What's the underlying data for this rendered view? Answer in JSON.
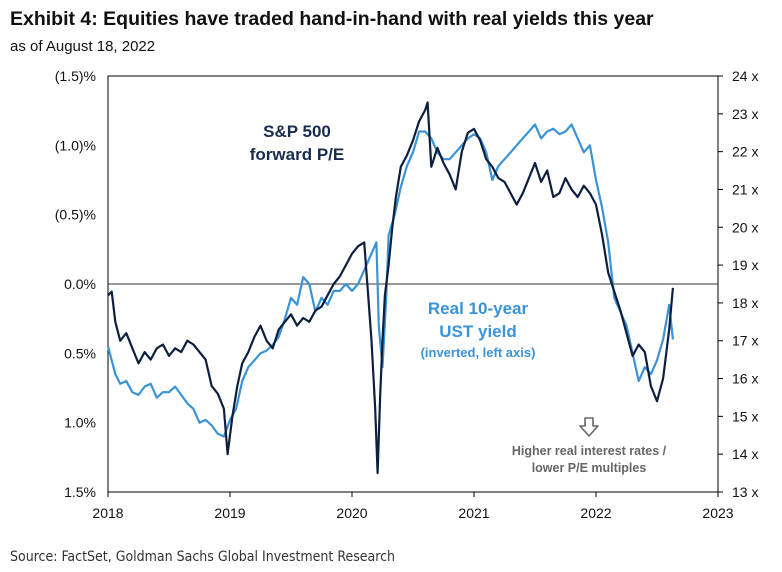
{
  "header": {
    "title": "Exhibit 4: Equities have traded hand-in-hand with real yields this year",
    "subtitle": "as of August 18, 2022"
  },
  "footer": {
    "source": "Source: FactSet, Goldman Sachs Global Investment Research"
  },
  "colors": {
    "pe_series": "#0d1f3f",
    "yield_series": "#3a93d6",
    "zero_line": "#333333",
    "frame": "#000000",
    "annotation_grey": "#666666"
  },
  "annotations": {
    "pe_label": [
      "S&P 500",
      "forward P/E"
    ],
    "yield_label": [
      "Real 10-year",
      "UST yield"
    ],
    "yield_note": "(inverted, left axis)",
    "arrow_note": [
      "Higher real interest rates /",
      "lower P/E multiples"
    ],
    "arrow_icon": "down-arrow-icon"
  },
  "chart_data": {
    "type": "line",
    "title": "Exhibit 4: Equities have traded hand-in-hand with real yields this year",
    "subtitle": "as of August 18, 2022",
    "x_axis": {
      "ticks": [
        "2018",
        "2019",
        "2020",
        "2021",
        "2022",
        "2023"
      ],
      "range": [
        2018.0,
        2023.0
      ]
    },
    "y_left": {
      "range": [
        -1.5,
        1.5
      ],
      "inverted": true,
      "ticks": [
        {
          "value": -1.5,
          "label": "(1.5)%"
        },
        {
          "value": -1.0,
          "label": "(1.0)%"
        },
        {
          "value": -0.5,
          "label": "(0.5)%"
        },
        {
          "value": 0.0,
          "label": "0.0%"
        },
        {
          "value": 0.5,
          "label": "0.5%"
        },
        {
          "value": 1.0,
          "label": "1.0%"
        },
        {
          "value": 1.5,
          "label": "1.5%"
        }
      ]
    },
    "y_right": {
      "range": [
        13,
        24
      ],
      "ticks": [
        {
          "value": 24,
          "label": "24 x"
        },
        {
          "value": 23,
          "label": "23 x"
        },
        {
          "value": 22,
          "label": "22 x"
        },
        {
          "value": 21,
          "label": "21 x"
        },
        {
          "value": 20,
          "label": "20 x"
        },
        {
          "value": 19,
          "label": "19 x"
        },
        {
          "value": 18,
          "label": "18 x"
        },
        {
          "value": 17,
          "label": "17 x"
        },
        {
          "value": 16,
          "label": "16 x"
        },
        {
          "value": 15,
          "label": "15 x"
        },
        {
          "value": 14,
          "label": "14 x"
        },
        {
          "value": 13,
          "label": "13 x"
        }
      ]
    },
    "grid": false,
    "series": [
      {
        "name": "S&P 500 forward P/E",
        "axis": "right",
        "x": [
          2018.0,
          2018.03,
          2018.06,
          2018.1,
          2018.15,
          2018.2,
          2018.25,
          2018.3,
          2018.35,
          2018.4,
          2018.45,
          2018.5,
          2018.55,
          2018.6,
          2018.65,
          2018.7,
          2018.75,
          2018.8,
          2018.85,
          2018.9,
          2018.95,
          2018.98,
          2019.02,
          2019.06,
          2019.1,
          2019.15,
          2019.2,
          2019.25,
          2019.3,
          2019.35,
          2019.4,
          2019.45,
          2019.5,
          2019.55,
          2019.6,
          2019.65,
          2019.7,
          2019.75,
          2019.8,
          2019.85,
          2019.9,
          2019.95,
          2020.0,
          2020.05,
          2020.1,
          2020.13,
          2020.16,
          2020.19,
          2020.21,
          2020.23,
          2020.25,
          2020.27,
          2020.3,
          2020.33,
          2020.36,
          2020.4,
          2020.45,
          2020.5,
          2020.55,
          2020.6,
          2020.62,
          2020.65,
          2020.7,
          2020.75,
          2020.8,
          2020.85,
          2020.9,
          2020.95,
          2021.0,
          2021.05,
          2021.1,
          2021.15,
          2021.2,
          2021.25,
          2021.3,
          2021.35,
          2021.4,
          2021.45,
          2021.5,
          2021.55,
          2021.6,
          2021.65,
          2021.7,
          2021.75,
          2021.8,
          2021.85,
          2021.9,
          2021.95,
          2022.0,
          2022.05,
          2022.1,
          2022.15,
          2022.2,
          2022.25,
          2022.3,
          2022.35,
          2022.4,
          2022.45,
          2022.5,
          2022.55,
          2022.6,
          2022.63
        ],
        "values": [
          18.2,
          18.3,
          17.5,
          17.0,
          17.2,
          16.8,
          16.4,
          16.7,
          16.5,
          16.8,
          16.9,
          16.6,
          16.8,
          16.7,
          17.0,
          16.9,
          16.7,
          16.5,
          15.8,
          15.6,
          15.2,
          14.0,
          15.0,
          15.8,
          16.4,
          16.7,
          17.1,
          17.4,
          17.0,
          16.8,
          17.3,
          17.5,
          17.7,
          17.4,
          17.6,
          17.5,
          17.8,
          17.9,
          18.2,
          18.5,
          18.7,
          19.0,
          19.3,
          19.5,
          19.6,
          18.3,
          17.0,
          15.2,
          13.5,
          15.5,
          17.0,
          18.2,
          19.0,
          20.0,
          20.8,
          21.6,
          21.9,
          22.3,
          22.8,
          23.1,
          23.3,
          21.6,
          22.1,
          21.7,
          21.4,
          21.0,
          22.0,
          22.5,
          22.6,
          22.3,
          21.8,
          21.6,
          21.3,
          21.2,
          20.9,
          20.6,
          20.9,
          21.3,
          21.7,
          21.2,
          21.5,
          20.8,
          20.9,
          21.3,
          21.0,
          20.8,
          21.1,
          20.9,
          20.6,
          19.8,
          18.8,
          18.3,
          17.8,
          17.2,
          16.6,
          16.9,
          16.7,
          15.8,
          15.4,
          16.0,
          17.3,
          18.4
        ]
      },
      {
        "name": "Real 10-year UST yield",
        "axis": "left",
        "x": [
          2018.0,
          2018.03,
          2018.06,
          2018.1,
          2018.15,
          2018.2,
          2018.25,
          2018.3,
          2018.35,
          2018.4,
          2018.45,
          2018.5,
          2018.55,
          2018.6,
          2018.65,
          2018.7,
          2018.75,
          2018.8,
          2018.85,
          2018.9,
          2018.95,
          2019.0,
          2019.05,
          2019.1,
          2019.15,
          2019.2,
          2019.25,
          2019.3,
          2019.35,
          2019.4,
          2019.45,
          2019.5,
          2019.55,
          2019.6,
          2019.65,
          2019.7,
          2019.75,
          2019.8,
          2019.85,
          2019.9,
          2019.95,
          2020.0,
          2020.05,
          2020.1,
          2020.15,
          2020.2,
          2020.22,
          2020.25,
          2020.28,
          2020.3,
          2020.35,
          2020.4,
          2020.45,
          2020.5,
          2020.55,
          2020.6,
          2020.65,
          2020.7,
          2020.75,
          2020.8,
          2020.85,
          2020.9,
          2020.95,
          2021.0,
          2021.05,
          2021.1,
          2021.15,
          2021.2,
          2021.25,
          2021.3,
          2021.35,
          2021.4,
          2021.45,
          2021.5,
          2021.55,
          2021.6,
          2021.65,
          2021.7,
          2021.75,
          2021.8,
          2021.85,
          2021.9,
          2021.95,
          2022.0,
          2022.05,
          2022.1,
          2022.15,
          2022.2,
          2022.25,
          2022.3,
          2022.35,
          2022.4,
          2022.45,
          2022.5,
          2022.55,
          2022.6,
          2022.63
        ],
        "values": [
          0.45,
          0.55,
          0.65,
          0.72,
          0.7,
          0.78,
          0.8,
          0.74,
          0.72,
          0.82,
          0.78,
          0.78,
          0.74,
          0.8,
          0.86,
          0.9,
          1.0,
          0.98,
          1.02,
          1.08,
          1.1,
          0.98,
          0.9,
          0.7,
          0.6,
          0.55,
          0.5,
          0.48,
          0.44,
          0.38,
          0.25,
          0.1,
          0.15,
          -0.05,
          0.0,
          0.2,
          0.1,
          0.15,
          0.05,
          0.05,
          0.0,
          0.05,
          0.0,
          -0.1,
          -0.2,
          -0.3,
          0.3,
          0.6,
          0.1,
          -0.35,
          -0.5,
          -0.7,
          -0.85,
          -0.95,
          -1.1,
          -1.1,
          -1.05,
          -0.95,
          -0.9,
          -0.9,
          -0.95,
          -1.0,
          -1.05,
          -1.08,
          -1.05,
          -0.95,
          -0.75,
          -0.85,
          -0.9,
          -0.95,
          -1.0,
          -1.05,
          -1.1,
          -1.15,
          -1.05,
          -1.1,
          -1.12,
          -1.08,
          -1.1,
          -1.15,
          -1.05,
          -0.95,
          -1.0,
          -0.75,
          -0.55,
          -0.3,
          0.1,
          0.2,
          0.3,
          0.5,
          0.7,
          0.6,
          0.65,
          0.55,
          0.4,
          0.15,
          0.4
        ]
      }
    ]
  }
}
